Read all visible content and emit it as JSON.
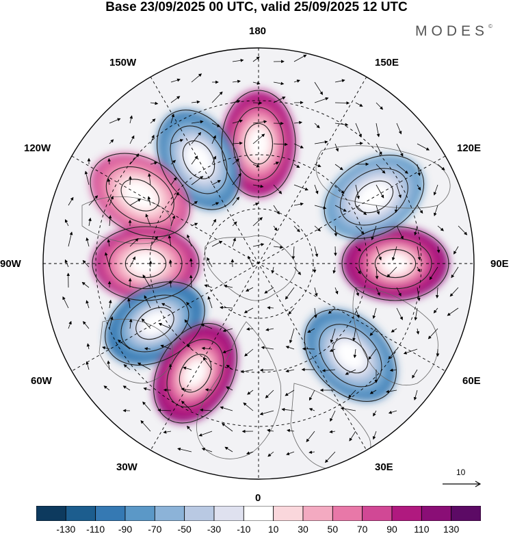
{
  "title": "Base 23/09/2025 00 UTC, valid 25/09/2025 12 UTC",
  "brand": "MODES",
  "brand_mark": "©",
  "longitude_labels": {
    "n180": "180",
    "e150": "150E",
    "e120": "120E",
    "e90": "90E",
    "e60": "60E",
    "e30": "30E",
    "zero": "0",
    "w30": "30W",
    "w60": "60W",
    "w90": "90W",
    "w120": "120W",
    "w150": "150W"
  },
  "reference_vector": "10",
  "colorbar": {
    "colors": [
      "#0d3a5e",
      "#1c5d8e",
      "#3579b3",
      "#5b98c7",
      "#8cb3d8",
      "#b9c9e3",
      "#dfe1ef",
      "#ffffff",
      "#fad7dc",
      "#f3aac1",
      "#e878a8",
      "#d14895",
      "#b0197f",
      "#8a0e76",
      "#5c0a65"
    ],
    "labels": [
      "-130",
      "-110",
      "-90",
      "-70",
      "-50",
      "-30",
      "-10",
      "10",
      "30",
      "50",
      "70",
      "90",
      "110",
      "130"
    ]
  },
  "anomaly_centers": [
    {
      "name": "high-180",
      "lon": 180,
      "strength": "110"
    },
    {
      "name": "low-150W",
      "lon": -150,
      "strength": "-90"
    },
    {
      "name": "high-120W",
      "lon": -120,
      "strength": "70"
    },
    {
      "name": "high-90W",
      "lon": -90,
      "strength": "90"
    },
    {
      "name": "low-60W",
      "lon": -60,
      "strength": "-110"
    },
    {
      "name": "high-30W",
      "lon": -30,
      "strength": "130"
    },
    {
      "name": "low-45E",
      "lon": 45,
      "strength": "-90"
    },
    {
      "name": "high-90E",
      "lon": 90,
      "strength": "130"
    },
    {
      "name": "low-120E",
      "lon": 120,
      "strength": "-70"
    }
  ]
}
